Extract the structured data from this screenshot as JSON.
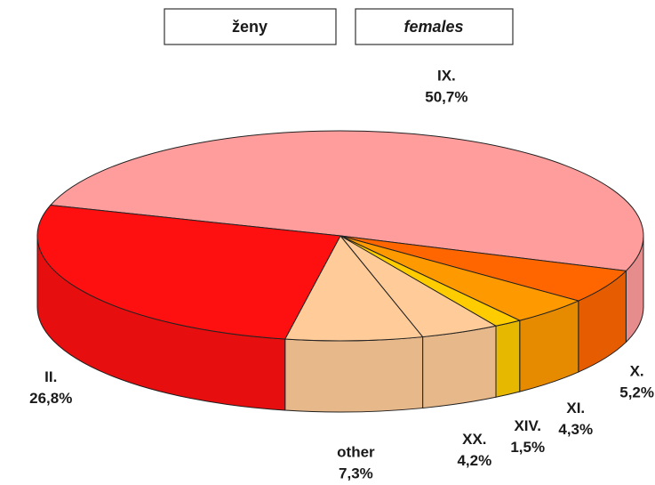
{
  "chart_data": {
    "type": "pie",
    "title": "ženy",
    "subtitle": "females",
    "categories": [
      "IX.",
      "X.",
      "XI.",
      "XIV.",
      "XX.",
      "other",
      "II."
    ],
    "values": [
      50.7,
      5.2,
      4.3,
      1.5,
      4.2,
      7.3,
      26.8
    ],
    "value_labels": [
      "50,7%",
      "5,2%",
      "4,3%",
      "1,5%",
      "4,2%",
      "7,3%",
      "26,8%"
    ],
    "colors": [
      "#ff9c9c",
      "#ff6600",
      "#ff9900",
      "#ffcc00",
      "#ffcc99",
      "#ffcc99",
      "#ff1010"
    ]
  }
}
